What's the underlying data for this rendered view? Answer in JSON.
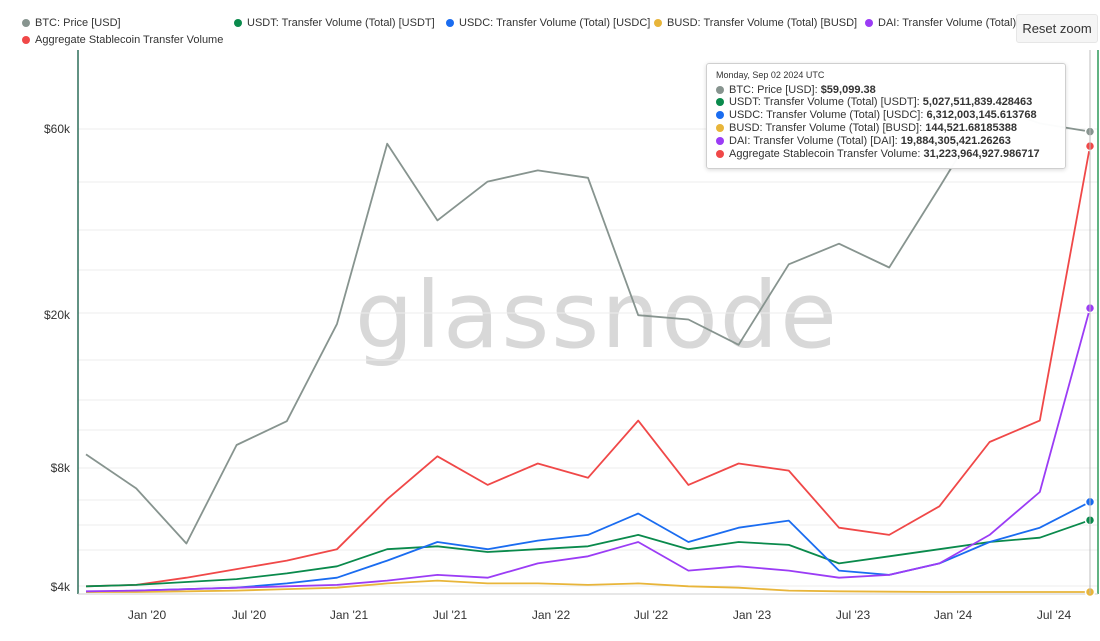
{
  "legend": {
    "items": [
      {
        "label": "BTC: Price [USD]",
        "color": "#87948f"
      },
      {
        "label": "USDT: Transfer Volume (Total) [USDT]",
        "color": "#0a8a4c"
      },
      {
        "label": "USDC: Transfer Volume (Total) [USDC]",
        "color": "#1a6cf0"
      },
      {
        "label": "BUSD: Transfer Volume (Total) [BUSD]",
        "color": "#e8b53a"
      },
      {
        "label": "DAI: Transfer Volume (Total) [D",
        "color": "#9b3cf5"
      },
      {
        "label": "Aggregate Stablecoin Transfer Volume",
        "color": "#f04848"
      }
    ]
  },
  "reset_zoom_label": "Reset zoom",
  "watermark": "glassnode",
  "tooltip": {
    "date": "Monday, Sep 02 2024 UTC",
    "rows": [
      {
        "label": "BTC: Price [USD]: ",
        "value": "$59,099.38",
        "color": "#87948f"
      },
      {
        "label": "USDT: Transfer Volume (Total) [USDT]: ",
        "value": "5,027,511,839.428463",
        "color": "#0a8a4c"
      },
      {
        "label": "USDC: Transfer Volume (Total) [USDC]: ",
        "value": "6,312,003,145.613768",
        "color": "#1a6cf0"
      },
      {
        "label": "BUSD: Transfer Volume (Total) [BUSD]: ",
        "value": "144,521.68185388",
        "color": "#e8b53a"
      },
      {
        "label": "DAI: Transfer Volume (Total) [DAI]: ",
        "value": "19,884,305,421.26263",
        "color": "#9b3cf5"
      },
      {
        "label": "Aggregate Stablecoin Transfer Volume: ",
        "value": "31,223,964,927.986717",
        "color": "#f04848"
      }
    ]
  },
  "chart_data": {
    "type": "line",
    "title": "",
    "xlabel": "",
    "ylabel": "",
    "x_ticks": [
      "Jan '20",
      "Jul '20",
      "Jan '21",
      "Jul '21",
      "Jan '22",
      "Jul '22",
      "Jan '23",
      "Jul '23",
      "Jan '24",
      "Jul '24"
    ],
    "y_ticks": [
      "$60k",
      "$20k",
      "$8k",
      "$4k"
    ],
    "y_scale": "log",
    "ylim": [
      4000,
      90000
    ],
    "grid": true,
    "x": [
      "2019-09",
      "2019-12",
      "2020-03",
      "2020-06",
      "2020-09",
      "2020-12",
      "2021-03",
      "2021-06",
      "2021-09",
      "2021-12",
      "2022-03",
      "2022-06",
      "2022-09",
      "2022-12",
      "2023-03",
      "2023-06",
      "2023-09",
      "2023-12",
      "2024-03",
      "2024-06",
      "2024-09"
    ],
    "series": [
      {
        "name": "BTC: Price [USD]",
        "color": "#87948f",
        "axis": "price",
        "values": [
          8800,
          7200,
          5200,
          9300,
          10700,
          19000,
          55000,
          35000,
          44000,
          47000,
          45000,
          20000,
          19500,
          16800,
          27000,
          30500,
          26500,
          42500,
          69000,
          62000,
          59099.38
        ]
      },
      {
        "name": "Aggregate Stablecoin Transfer Volume",
        "color": "#f04848",
        "axis": "volume",
        "values": [
          0.4,
          0.5,
          1.0,
          1.6,
          2.2,
          3.0,
          6.5,
          9.5,
          7.5,
          9.0,
          8.0,
          12.0,
          7.5,
          9.0,
          8.5,
          4.5,
          4.0,
          6.0,
          10.5,
          12.0,
          31.22
        ]
      },
      {
        "name": "USDT: Transfer Volume (Total) [USDT]",
        "color": "#0a8a4c",
        "axis": "volume",
        "values": [
          0.4,
          0.5,
          0.7,
          0.9,
          1.3,
          1.8,
          3.0,
          3.2,
          2.8,
          3.0,
          3.2,
          4.0,
          3.0,
          3.5,
          3.3,
          2.0,
          2.5,
          3.0,
          3.5,
          3.8,
          5.03
        ]
      },
      {
        "name": "USDC: Transfer Volume (Total) [USDC]",
        "color": "#1a6cf0",
        "axis": "volume",
        "values": [
          0.0,
          0.1,
          0.2,
          0.3,
          0.6,
          1.0,
          2.2,
          3.5,
          3.0,
          3.6,
          4.0,
          5.5,
          3.5,
          4.5,
          5.0,
          1.5,
          1.2,
          2.0,
          3.5,
          4.5,
          6.31
        ]
      },
      {
        "name": "BUSD: Transfer Volume (Total) [BUSD]",
        "color": "#e8b53a",
        "axis": "volume",
        "values": [
          0.0,
          0.0,
          0.05,
          0.1,
          0.2,
          0.3,
          0.6,
          0.8,
          0.6,
          0.6,
          0.5,
          0.6,
          0.4,
          0.3,
          0.1,
          0.05,
          0.02,
          0.0,
          0.0,
          0.0,
          0.0001
        ]
      },
      {
        "name": "DAI: Transfer Volume (Total) [DAI]",
        "color": "#9b3cf5",
        "axis": "volume",
        "values": [
          0.05,
          0.1,
          0.2,
          0.3,
          0.4,
          0.5,
          0.8,
          1.2,
          1.0,
          2.0,
          2.5,
          3.5,
          1.5,
          1.8,
          1.5,
          1.0,
          1.2,
          2.0,
          4.0,
          7.0,
          19.88
        ]
      }
    ]
  }
}
